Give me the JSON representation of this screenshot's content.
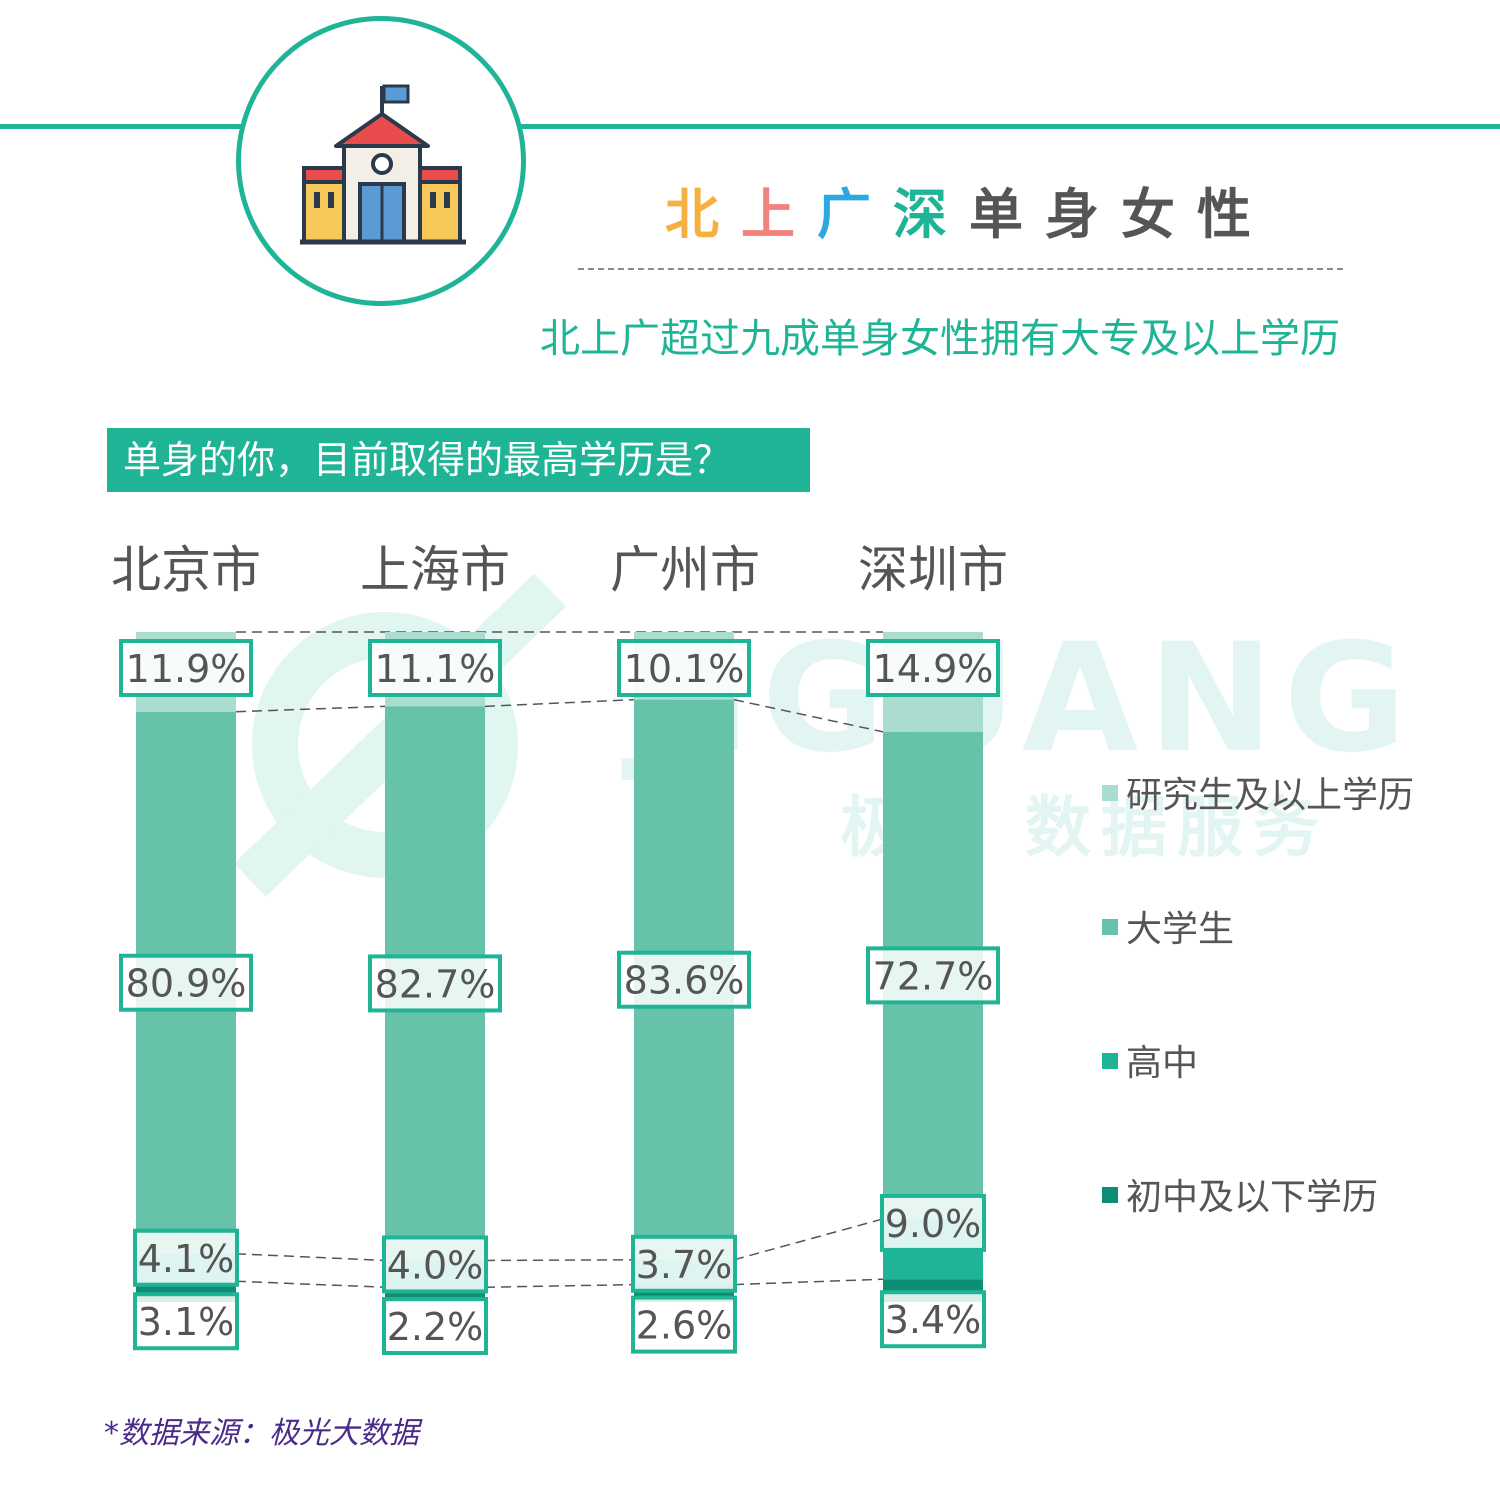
{
  "header": {
    "title_chars": [
      "北",
      "上",
      "广",
      "深",
      "单",
      "身",
      "女",
      "性"
    ],
    "title_colors": [
      "#f5b041",
      "#f0837b",
      "#2ba8e0",
      "#20b497",
      "#555555",
      "#555555",
      "#555555",
      "#555555"
    ],
    "subtitle": "北上广超过九成单身女性拥有大专及以上学历",
    "icon": "school-building-icon"
  },
  "question": "单身的你，目前取得的最高学历是？",
  "watermark": {
    "brand": "JIGUANG",
    "tagline": "极光 数据服务"
  },
  "chart_data": {
    "type": "bar",
    "stacked": true,
    "normalized": true,
    "categories": [
      "北京市",
      "上海市",
      "广州市",
      "深圳市"
    ],
    "series": [
      {
        "name": "研究生及以上学历",
        "values": [
          11.9,
          11.1,
          10.1,
          14.9
        ],
        "color": "#abdcd0"
      },
      {
        "name": "大学生",
        "values": [
          80.9,
          82.7,
          83.6,
          72.7
        ],
        "color": "#66c2a9"
      },
      {
        "name": "高中",
        "values": [
          4.1,
          4.0,
          3.7,
          9.0
        ],
        "color": "#20b497"
      },
      {
        "name": "初中及以下学历",
        "values": [
          3.1,
          2.2,
          2.6,
          3.4
        ],
        "color": "#0f8c74"
      }
    ],
    "unit": "%",
    "legend_position": "right"
  },
  "source": "*数据来源：极光大数据"
}
